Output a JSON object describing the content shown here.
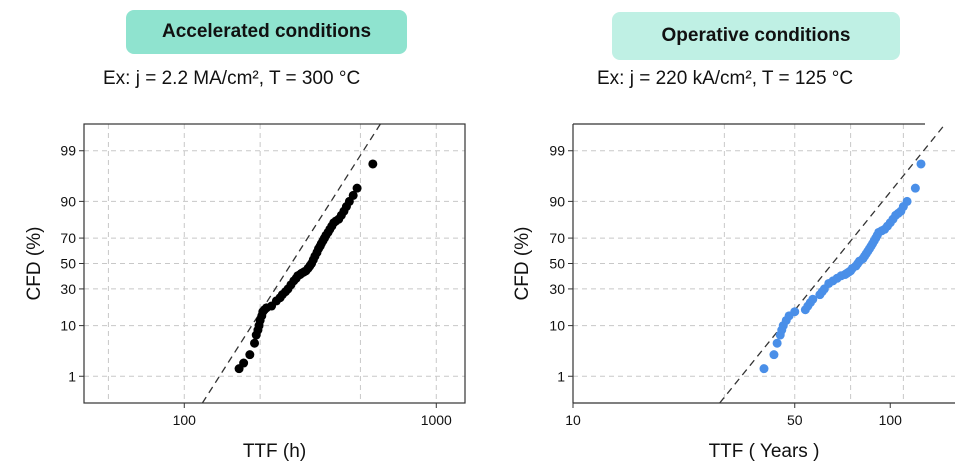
{
  "panels": [
    {
      "badge": "Accelerated conditions",
      "subtitle": "Ex: j = 2.2 MA/cm², T = 300 °C",
      "badge_color": "#8fe3cf"
    },
    {
      "badge": "Operative conditions",
      "subtitle": "Ex: j = 220 kA/cm², T = 125 °C",
      "badge_color": "#bff0e4"
    }
  ],
  "chart_data": [
    {
      "type": "scatter",
      "title": "Accelerated conditions",
      "xlabel": "TTF (h)",
      "ylabel": "CFD (%)",
      "x_scale": "log",
      "y_scale": "lognormal-probability",
      "xlim": [
        40,
        1300
      ],
      "x_ticks": [
        100,
        1000
      ],
      "x_gridlines": [
        50,
        100,
        200,
        500,
        1000
      ],
      "y_ticks": [
        1,
        10,
        30,
        50,
        70,
        90,
        99
      ],
      "grid": true,
      "marker_color": "#000000",
      "fit_line": {
        "style": "dashed",
        "x": [
          118,
          600
        ],
        "y": [
          0.2,
          99.8
        ]
      },
      "series": [
        {
          "x": [
            165,
            172,
            182,
            190,
            193,
            196,
            198,
            200,
            203,
            205,
            208,
            212,
            222,
            232,
            240,
            245,
            252,
            258,
            265,
            272,
            278,
            282,
            288,
            292,
            298,
            304,
            310,
            315,
            320,
            325,
            330,
            336,
            341,
            346,
            350,
            355,
            360,
            365,
            372,
            378,
            385,
            392,
            400,
            410,
            420,
            430,
            440,
            452,
            468,
            485,
            560
          ],
          "y": [
            1.5,
            2.0,
            3.0,
            5.0,
            7.0,
            8.5,
            10.0,
            12.0,
            14.0,
            16.0,
            17.0,
            18.0,
            19.0,
            22.0,
            24.0,
            26.0,
            28.0,
            30.0,
            33.0,
            36.0,
            38.0,
            40.0,
            41.0,
            42.0,
            43.0,
            44.0,
            46.0,
            48.0,
            50.0,
            53.0,
            56.0,
            59.0,
            62.0,
            64.0,
            66.0,
            68.0,
            70.0,
            72.0,
            74.0,
            76.0,
            78.0,
            80.0,
            81.0,
            82.0,
            84.0,
            86.0,
            88.0,
            90.0,
            92.0,
            94.0,
            98.0
          ]
        }
      ]
    },
    {
      "type": "scatter",
      "title": "Operative conditions",
      "xlabel": "TTF ( Years )",
      "ylabel": "CFD (%)",
      "x_scale": "log",
      "y_scale": "lognormal-probability",
      "xlim": [
        10,
        160
      ],
      "x_ticks": [
        10,
        50,
        100
      ],
      "x_gridlines": [
        30,
        50,
        75,
        110
      ],
      "y_ticks": [
        1,
        10,
        30,
        50,
        70,
        90,
        99
      ],
      "grid": true,
      "marker_color": "#4a8fe8",
      "fit_line": {
        "style": "dashed",
        "x": [
          29,
          149
        ],
        "y": [
          0.2,
          99.8
        ]
      },
      "series": [
        {
          "x": [
            40,
            43,
            44,
            45,
            45.5,
            46,
            47,
            48,
            50,
            54,
            55,
            56,
            57,
            60,
            61,
            62,
            64,
            66,
            68,
            70,
            72,
            73,
            74,
            75,
            76,
            78,
            79,
            80,
            82,
            83,
            84,
            85,
            86,
            87,
            88,
            89,
            90,
            91,
            92,
            94,
            96,
            98,
            100,
            102,
            104,
            106,
            108,
            110,
            113,
            120,
            125
          ],
          "y": [
            1.5,
            3.0,
            5.0,
            7.0,
            8.5,
            10.0,
            12.0,
            14.0,
            16.0,
            17.0,
            19.0,
            21.0,
            23.0,
            26.0,
            28.0,
            30.0,
            34.0,
            36.0,
            38.0,
            40.0,
            41.0,
            42.0,
            43.0,
            44.0,
            46.0,
            48.0,
            50.0,
            52.0,
            54.0,
            56.0,
            58.0,
            60.0,
            62.0,
            64.0,
            66.0,
            68.0,
            70.0,
            72.0,
            74.0,
            75.0,
            76.0,
            78.0,
            80.0,
            82.0,
            84.0,
            85.0,
            86.0,
            88.0,
            90.0,
            94.0,
            98.0
          ]
        }
      ]
    }
  ]
}
